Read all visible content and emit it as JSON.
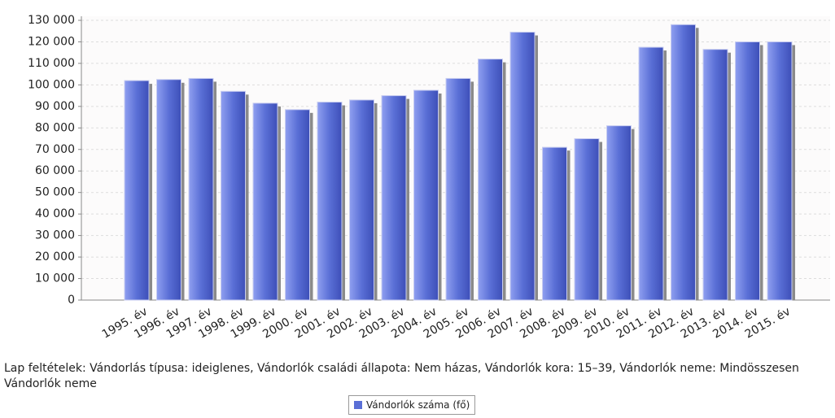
{
  "chart_data": {
    "type": "bar",
    "categories": [
      "1995. év",
      "1996. év",
      "1997. év",
      "1998. év",
      "1999. év",
      "2000. év",
      "2001. év",
      "2002. év",
      "2003. év",
      "2004. év",
      "2005. év",
      "2006. év",
      "2007. év",
      "2008. év",
      "2009. év",
      "2010. év",
      "2011. év",
      "2012. év",
      "2013. év",
      "2014. év",
      "2015. év"
    ],
    "series": [
      {
        "name": "Vándorlók száma (fő)",
        "color": "#5a6fd6",
        "values": [
          102000,
          102500,
          103000,
          97000,
          91500,
          88500,
          92000,
          93000,
          95000,
          97500,
          103000,
          112000,
          124500,
          71000,
          75000,
          81000,
          117500,
          128000,
          116500,
          120000,
          120000
        ]
      }
    ],
    "ylim": [
      0,
      130000
    ],
    "yticks": [
      0,
      {
        "value": 10000,
        "label": "10 000"
      },
      {
        "value": 20000,
        "label": "20 000"
      },
      {
        "value": 30000,
        "label": "30 000"
      },
      {
        "value": 40000,
        "label": "40 000"
      },
      {
        "value": 50000,
        "label": "50 000"
      },
      {
        "value": 60000,
        "label": "60 000"
      },
      {
        "value": 70000,
        "label": "70 000"
      },
      {
        "value": 80000,
        "label": "80 000"
      },
      {
        "value": 90000,
        "label": "90 000"
      },
      {
        "value": 100000,
        "label": "100 000"
      },
      {
        "value": 110000,
        "label": "110 000"
      },
      {
        "value": 120000,
        "label": "120 000"
      },
      {
        "value": 130000,
        "label": "130 000"
      }
    ],
    "grid": true,
    "note": "Lap feltételek: Vándorlás típusa: ideiglenes, Vándorlók családi állapota: Nem házas, Vándorlók kora: 15–39, Vándorlók neme: Mindösszesen Vándorlók neme",
    "legend": "bottom"
  }
}
